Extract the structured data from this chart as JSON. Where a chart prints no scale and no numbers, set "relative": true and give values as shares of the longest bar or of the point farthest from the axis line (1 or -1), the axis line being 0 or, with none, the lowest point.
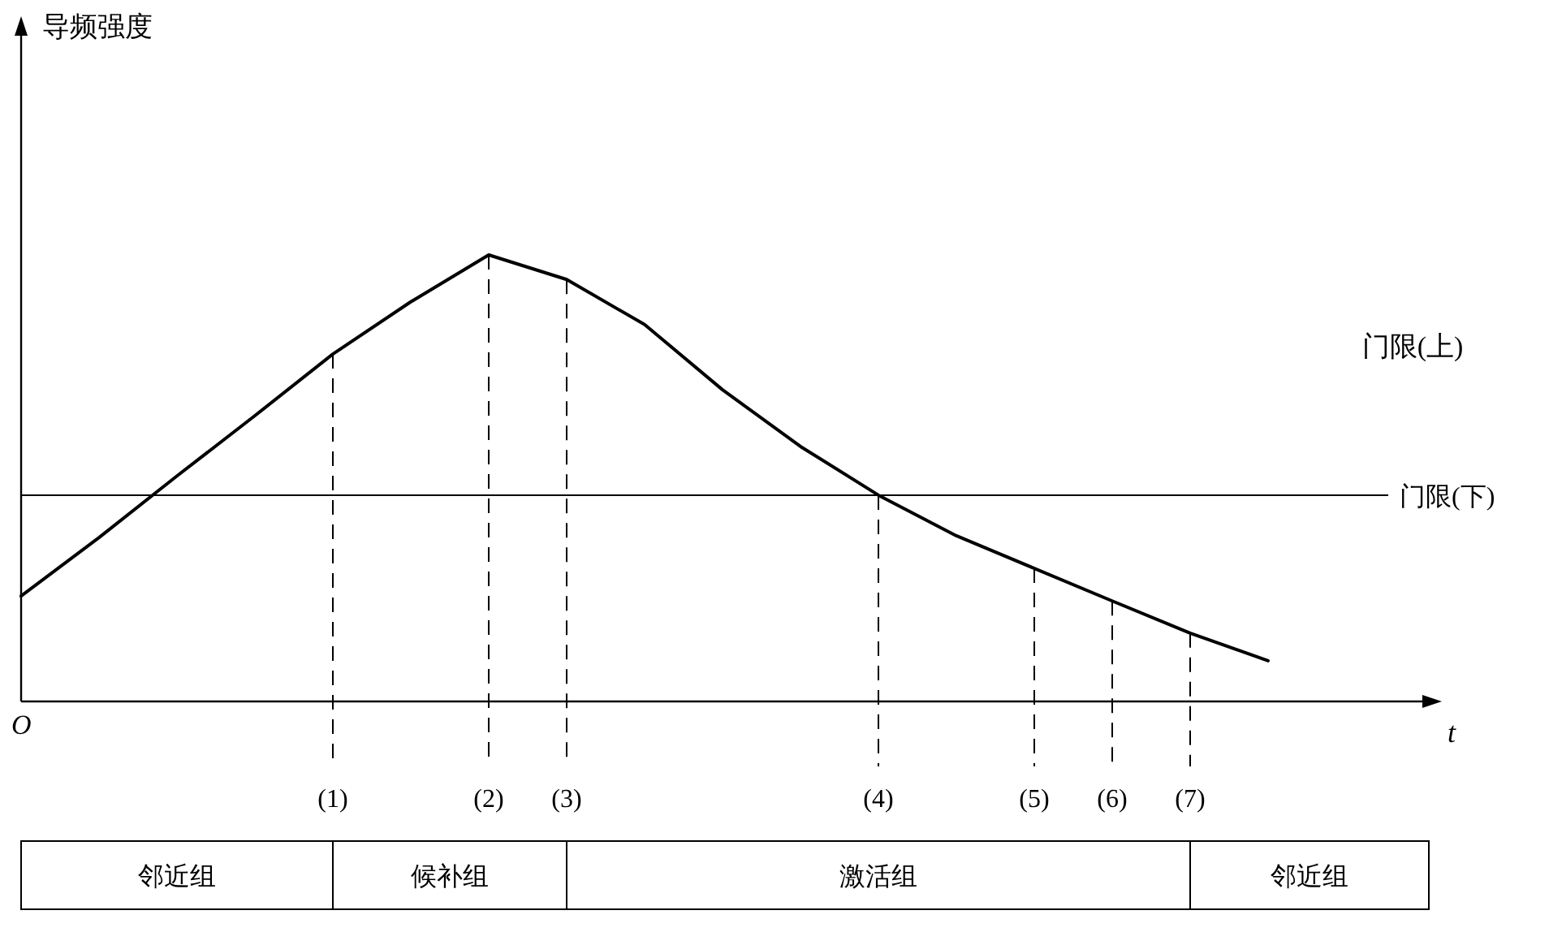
{
  "chart_data": [
    {
      "type": "line",
      "relative": true,
      "xlabel": "t",
      "categories": [
        null,
        null,
        null,
        null,
        "(1)",
        null,
        "(2)",
        "(3)",
        null,
        null,
        null,
        "(4)",
        null,
        "(5)",
        "(6)",
        "(7)",
        null
      ],
      "series": [
        {
          "color": "#000000",
          "values": [
            0.236,
            0.367,
            0.505,
            0.64,
            0.778,
            0.895,
            1,
            0.945,
            0.844,
            0.698,
            0.571,
            0.462,
            0.371,
            0.298,
            0.225,
            0.153,
            0.091
          ]
        }
      ],
      "ref_lines": [
        {
          "axis": "y",
          "value": 0.462,
          "label": "门限(下)",
          "line_style": "solid"
        },
        {
          "axis": "x",
          "value": "(1)",
          "line_style": "dashed"
        },
        {
          "axis": "x",
          "value": "(2)",
          "line_style": "dashed"
        },
        {
          "axis": "x",
          "value": "(3)",
          "line_style": "dashed"
        },
        {
          "axis": "x",
          "value": "(4)",
          "line_style": "dashed"
        },
        {
          "axis": "x",
          "value": "(5)",
          "line_style": "dashed"
        },
        {
          "axis": "x",
          "value": "(6)",
          "line_style": "dashed"
        },
        {
          "axis": "x",
          "value": "(7)",
          "line_style": "dashed"
        }
      ],
      "annotations": [
        "O",
        "导频强度",
        "门限(上)"
      ]
    },
    {
      "type": "other",
      "annotations": [
        "邻近组",
        "候补组",
        "激活组",
        "邻近组"
      ]
    }
  ]
}
